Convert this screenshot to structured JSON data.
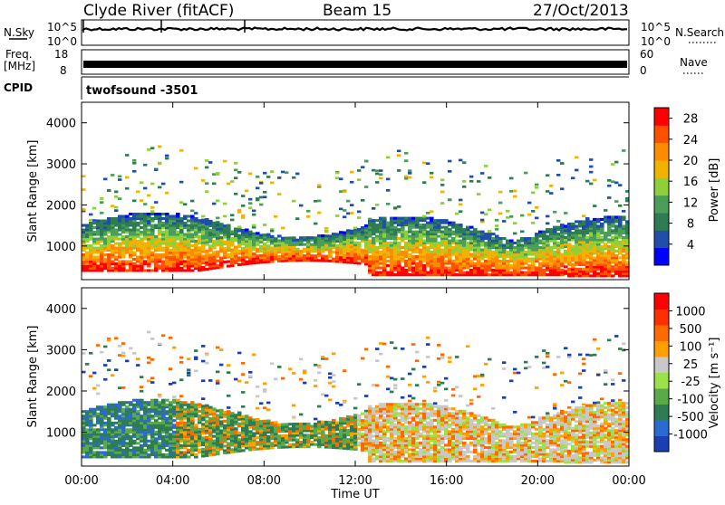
{
  "header": {
    "station": "Clyde River (fitACF)",
    "beam": "Beam 15",
    "date": "27/Oct/2013"
  },
  "strip_labels": {
    "nsky": "N.Sky",
    "nsearch": "N.Search",
    "freq_line1": "Freq.",
    "freq_line2": "[MHz]",
    "nave": "Nave",
    "cpid": "CPID",
    "cpid_value": "twofsound -3501",
    "nsky_ticks": [
      "10^5",
      "10^0"
    ],
    "nsearch_ticks": [
      "10^5",
      "10^0"
    ],
    "freq_ticks": [
      "18",
      "8"
    ],
    "nave_ticks": [
      "60",
      "0"
    ]
  },
  "colors": {
    "power_scale": [
      "#0000ff",
      "#1f4fa8",
      "#2e7d52",
      "#4b9e5a",
      "#8fcf3a",
      "#f0b400",
      "#ff8c00",
      "#ff5000",
      "#ff0000"
    ],
    "velocity_scale": [
      "#1a3fb0",
      "#2b6ad0",
      "#2e7d52",
      "#5aaa4a",
      "#9be24a",
      "#c8c8c8",
      "#ffa000",
      "#ff6a00",
      "#ff3000",
      "#ff0000"
    ]
  },
  "chart_data": [
    {
      "type": "heatmap",
      "name_panel": "power",
      "ylabel": "Slant Range [km]",
      "xlabel": "Time UT",
      "x_ticks": [
        "00:00",
        "04:00",
        "08:00",
        "12:00",
        "16:00",
        "20:00",
        "00:00"
      ],
      "x_range_hours": [
        0,
        24
      ],
      "y_ticks": [
        1000,
        2000,
        3000,
        4000
      ],
      "ylim": [
        180,
        4500
      ],
      "colorbar": {
        "label": "Power [dB]",
        "ticks": [
          "4",
          "8",
          "12",
          "16",
          "20",
          "24",
          "28"
        ],
        "range": [
          0,
          30
        ]
      }
    },
    {
      "type": "heatmap",
      "name_panel": "velocity",
      "ylabel": "Slant Range [km]",
      "xlabel": "Time UT",
      "x_ticks": [
        "00:00",
        "04:00",
        "08:00",
        "12:00",
        "16:00",
        "20:00",
        "00:00"
      ],
      "x_range_hours": [
        0,
        24
      ],
      "y_ticks": [
        1000,
        2000,
        3000,
        4000
      ],
      "ylim": [
        180,
        4500
      ],
      "colorbar": {
        "label": "Velocity [m s⁻¹]",
        "ticks": [
          "1000",
          "500",
          "100",
          "25",
          "-25",
          "-100",
          "-500",
          "-1000"
        ]
      }
    }
  ]
}
